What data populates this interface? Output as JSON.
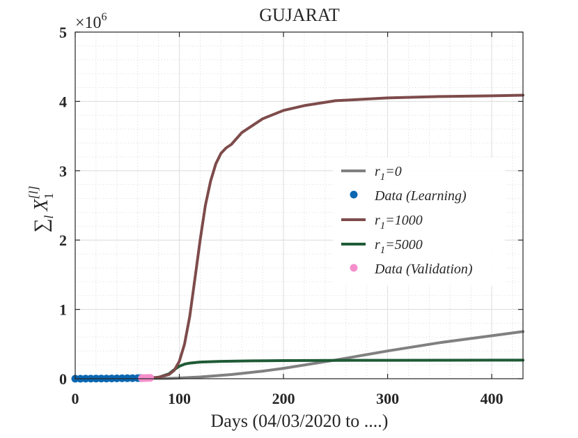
{
  "chart_data": {
    "type": "line",
    "title": "GUJARAT",
    "xlabel": "Days (04/03/2020 to ....)",
    "ylabel": "∑l X1[l]",
    "ylabel_parts": {
      "sum": "∑",
      "sub_l": "l",
      "x": "X",
      "sub_1": "1",
      "sup": "[l]"
    },
    "y_multiplier": {
      "base": "×10",
      "exp": "6"
    },
    "xlim": [
      0,
      430
    ],
    "ylim": [
      0,
      5
    ],
    "x_ticks": [
      0,
      100,
      200,
      300,
      400
    ],
    "x_tick_labels": [
      "0",
      "100",
      "200",
      "300",
      "400"
    ],
    "y_ticks": [
      0,
      1,
      2,
      3,
      4,
      5
    ],
    "y_tick_labels": [
      "0",
      "1",
      "2",
      "3",
      "4",
      "5"
    ],
    "grid": true,
    "legend_position": "center-right",
    "series": [
      {
        "name": "r1=0",
        "legend": {
          "main": "r",
          "sub": "1",
          "rest": "=0"
        },
        "kind": "line",
        "color": "#808080",
        "x": [
          0,
          50,
          90,
          100,
          120,
          150,
          180,
          200,
          250,
          300,
          350,
          400,
          430
        ],
        "y": [
          0,
          0.001,
          0.005,
          0.01,
          0.025,
          0.06,
          0.11,
          0.15,
          0.27,
          0.4,
          0.52,
          0.62,
          0.68
        ]
      },
      {
        "name": "Data (Learning)",
        "legend": {
          "main": "Data (Learning)",
          "sub": "",
          "rest": ""
        },
        "kind": "scatter",
        "color": "#0a67b2",
        "x": [
          0,
          5,
          10,
          15,
          20,
          25,
          30,
          35,
          40,
          45,
          50,
          55,
          60,
          63
        ],
        "y": [
          0,
          0.0005,
          0.001,
          0.0015,
          0.002,
          0.0025,
          0.003,
          0.004,
          0.005,
          0.006,
          0.007,
          0.008,
          0.009,
          0.01
        ]
      },
      {
        "name": "r1=1000",
        "legend": {
          "main": "r",
          "sub": "1",
          "rest": "=1000"
        },
        "kind": "line",
        "color": "#7e4b4b",
        "x": [
          0,
          60,
          80,
          90,
          95,
          100,
          105,
          110,
          115,
          120,
          125,
          130,
          135,
          140,
          145,
          150,
          160,
          180,
          200,
          220,
          250,
          300,
          350,
          400,
          430
        ],
        "y": [
          0,
          0.005,
          0.02,
          0.06,
          0.12,
          0.25,
          0.5,
          0.9,
          1.45,
          2.0,
          2.5,
          2.85,
          3.1,
          3.25,
          3.33,
          3.38,
          3.55,
          3.75,
          3.87,
          3.94,
          4.01,
          4.05,
          4.07,
          4.08,
          4.09
        ]
      },
      {
        "name": "r1=5000",
        "legend": {
          "main": "r",
          "sub": "1",
          "rest": "=5000"
        },
        "kind": "line",
        "color": "#1f5a36",
        "x": [
          0,
          70,
          80,
          90,
          95,
          100,
          105,
          110,
          120,
          140,
          170,
          200,
          250,
          300,
          350,
          400,
          430
        ],
        "y": [
          0,
          0.005,
          0.02,
          0.07,
          0.13,
          0.18,
          0.21,
          0.225,
          0.24,
          0.25,
          0.258,
          0.262,
          0.265,
          0.266,
          0.267,
          0.268,
          0.268
        ]
      },
      {
        "name": "Data (Validation)",
        "legend": {
          "main": "Data (Validation)",
          "sub": "",
          "rest": ""
        },
        "kind": "scatter",
        "color": "#f58ecb",
        "x": [
          64,
          66,
          68,
          70,
          72
        ],
        "y": [
          0.008,
          0.009,
          0.01,
          0.011,
          0.012
        ]
      }
    ]
  }
}
